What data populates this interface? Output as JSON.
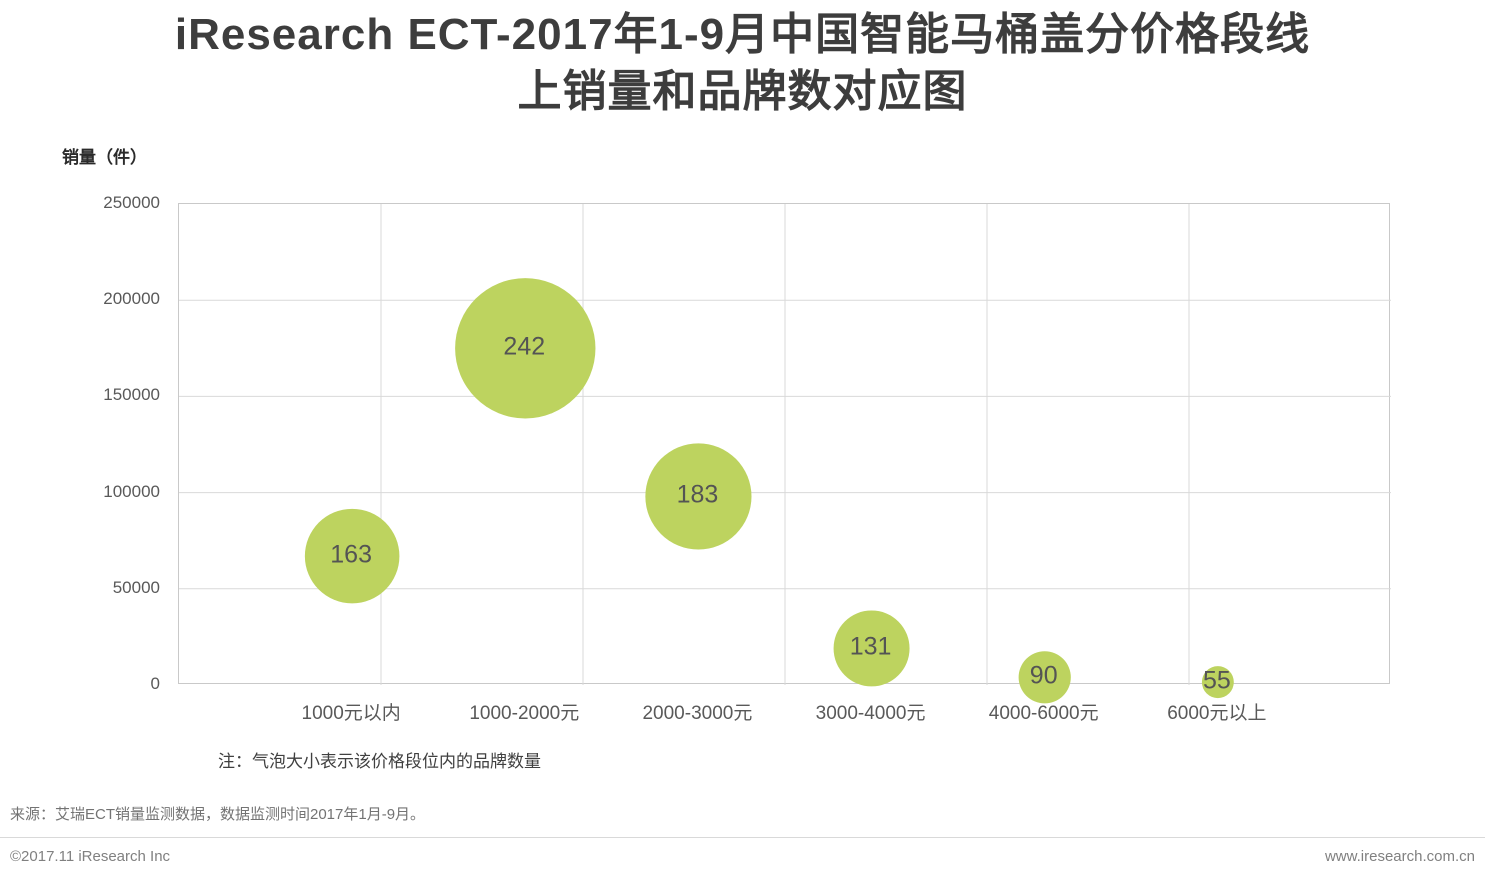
{
  "title": {
    "line1": "iResearch ECT-2017年1-9月中国智能马桶盖分价格段线",
    "line2": "上销量和品牌数对应图"
  },
  "chart_data": {
    "type": "scatter",
    "subtype": "bubble",
    "title": "iResearch ECT-2017年1-9月中国智能马桶盖分价格段线上销量和品牌数对应图",
    "xlabel": "",
    "ylabel": "销量（件）",
    "y_axis": {
      "min": 0,
      "max": 250000,
      "ticks": [
        0,
        50000,
        100000,
        150000,
        200000,
        250000
      ]
    },
    "categories": [
      "1000元以内",
      "1000-2000元",
      "2000-3000元",
      "3000-4000元",
      "4000-6000元",
      "6000元以上"
    ],
    "points": [
      {
        "category": "1000元以内",
        "sales_est": 67000,
        "brands": 163
      },
      {
        "category": "1000-2000元",
        "sales_est": 175000,
        "brands": 242
      },
      {
        "category": "2000-3000元",
        "sales_est": 98000,
        "brands": 183
      },
      {
        "category": "3000-4000元",
        "sales_est": 19000,
        "brands": 131
      },
      {
        "category": "4000-6000元",
        "sales_est": 4000,
        "brands": 90
      },
      {
        "category": "6000元以上",
        "sales_est": 1500,
        "brands": 55
      }
    ],
    "bubble_labels": [
      163,
      242,
      183,
      131,
      90,
      55
    ],
    "bubble_size_meaning": "该价格段位内的品牌数量",
    "bubble_scale": 0.29,
    "grid": true,
    "legend": "none",
    "colors": {
      "bubble": "#bdd35f",
      "bubble_label": "#545454",
      "gridline": "#d9d9d9",
      "plot_border": "#c9c9c9"
    }
  },
  "note": "注：气泡大小表示该价格段位内的品牌数量",
  "source": "来源：艾瑞ECT销量监测数据，数据监测时间2017年1月-9月。",
  "footer": {
    "left": "©2017.11 iResearch Inc",
    "right": "www.iresearch.com.cn"
  }
}
